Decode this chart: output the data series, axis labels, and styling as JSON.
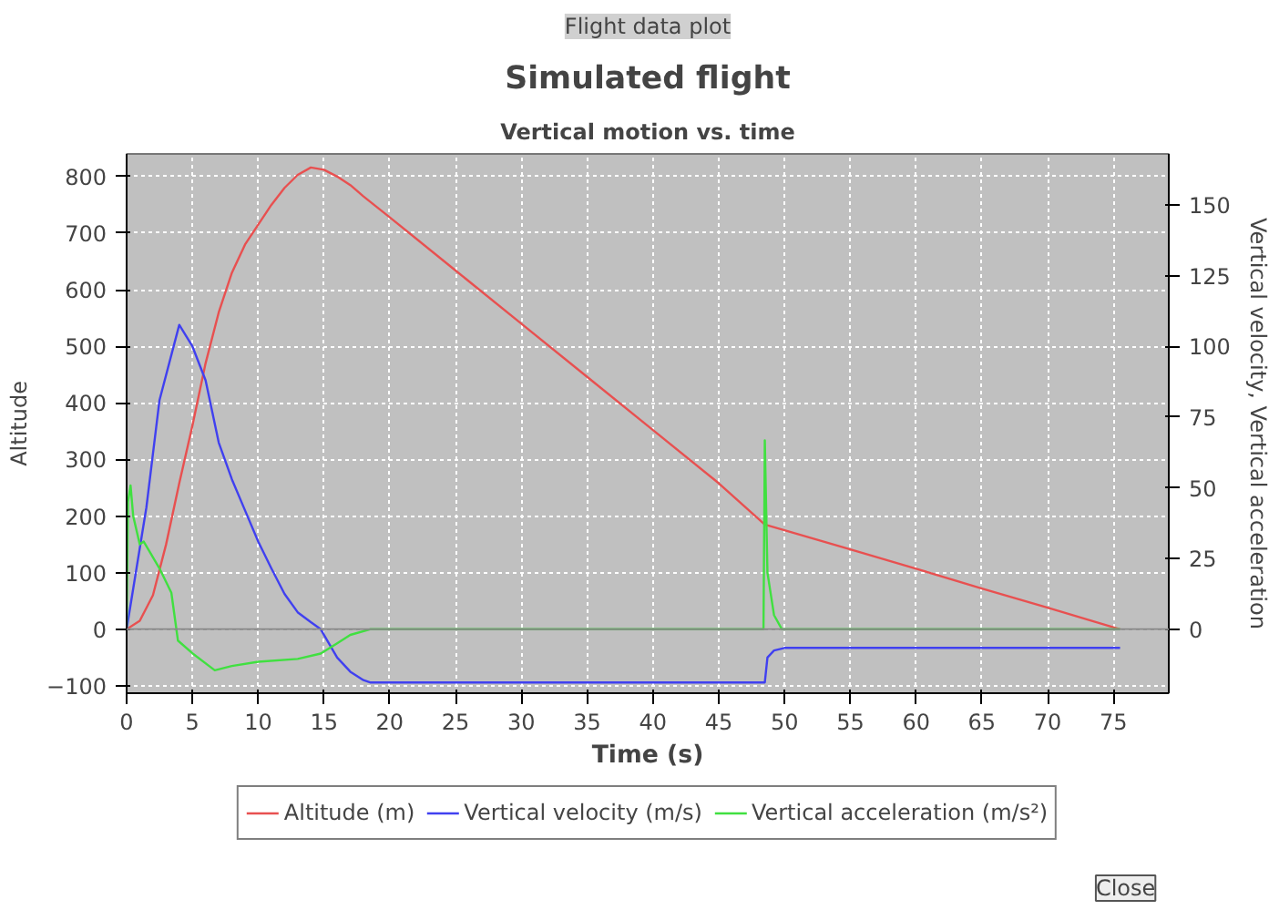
{
  "chart_data": {
    "type": "line",
    "title": "Simulated flight",
    "subtitle": "Vertical motion vs. time",
    "xlabel": "Time (s)",
    "ylabel": "Altitude",
    "y2label": "Vertical velocity, Vertical acceleration",
    "annotations": [
      "Flight data plot",
      "Close"
    ],
    "xlim": [
      0,
      79.2
    ],
    "xticks": [
      0,
      5,
      10,
      15,
      20,
      25,
      30,
      35,
      40,
      45,
      50,
      55,
      60,
      65,
      70,
      75
    ],
    "ylim": [
      -113,
      840
    ],
    "yticks": [
      -100,
      0,
      100,
      200,
      300,
      400,
      500,
      600,
      700,
      800
    ],
    "y2lim": [
      -22.6,
      168
    ],
    "y2ticks": [
      0,
      25,
      50,
      75,
      100,
      125,
      150
    ],
    "grid": true,
    "legend": "bottom",
    "line_style": "solid",
    "marker": "none",
    "ref_lines": [
      {
        "axis": "y",
        "value": 0,
        "color": "#888888",
        "line_style": "solid"
      }
    ],
    "series": [
      {
        "name": "Altitude (m)",
        "color": "#e85050",
        "x": [
          0,
          1,
          2,
          3,
          4,
          5,
          6,
          7,
          8,
          9,
          10,
          11,
          12,
          13,
          14,
          15,
          16,
          17,
          18,
          20,
          25,
          30,
          35,
          40,
          45,
          48.5,
          50,
          55,
          60,
          65,
          70,
          75.5
        ],
        "values": [
          0,
          15,
          60,
          150,
          258,
          360,
          470,
          560,
          630,
          680,
          715,
          750,
          780,
          803,
          816,
          812,
          800,
          785,
          765,
          728,
          634,
          540,
          446,
          352,
          258,
          185,
          175,
          141,
          107,
          72,
          38,
          0
        ]
      },
      {
        "name": "Vertical velocity (m/s)",
        "color": "#4040f0",
        "axis": "y2",
        "x": [
          0,
          1.5,
          2.5,
          4,
          5,
          6,
          7,
          8,
          9,
          10,
          11,
          12,
          13,
          14,
          14.75,
          16,
          17,
          18,
          18.5,
          48.5,
          48.7,
          49.2,
          50,
          75.5
        ],
        "values": [
          0,
          43,
          81,
          107.6,
          100,
          88,
          66,
          53,
          42,
          31,
          21.5,
          12.5,
          6,
          2.5,
          0,
          -10,
          -15,
          -18,
          -18.8,
          -18.8,
          -10,
          -7.5,
          -6.6,
          -6.6
        ]
      },
      {
        "name": "Vertical acceleration (m/s²)",
        "color": "#40e040",
        "axis": "y2",
        "x": [
          0,
          0.1,
          0.3,
          0.5,
          1,
          1.3,
          2.5,
          3.4,
          3.9,
          5,
          6.7,
          8,
          10,
          13,
          14.75,
          16,
          17,
          18.5,
          48.4,
          48.5,
          48.7,
          49.2,
          49.8,
          75.5
        ],
        "values": [
          0,
          45,
          50.8,
          40,
          30,
          31,
          21.5,
          12.9,
          -4,
          -8.5,
          -14.5,
          -13,
          -11.5,
          -10.5,
          -8.6,
          -5,
          -2,
          0,
          0,
          66.8,
          20,
          5,
          0,
          0
        ]
      }
    ]
  }
}
